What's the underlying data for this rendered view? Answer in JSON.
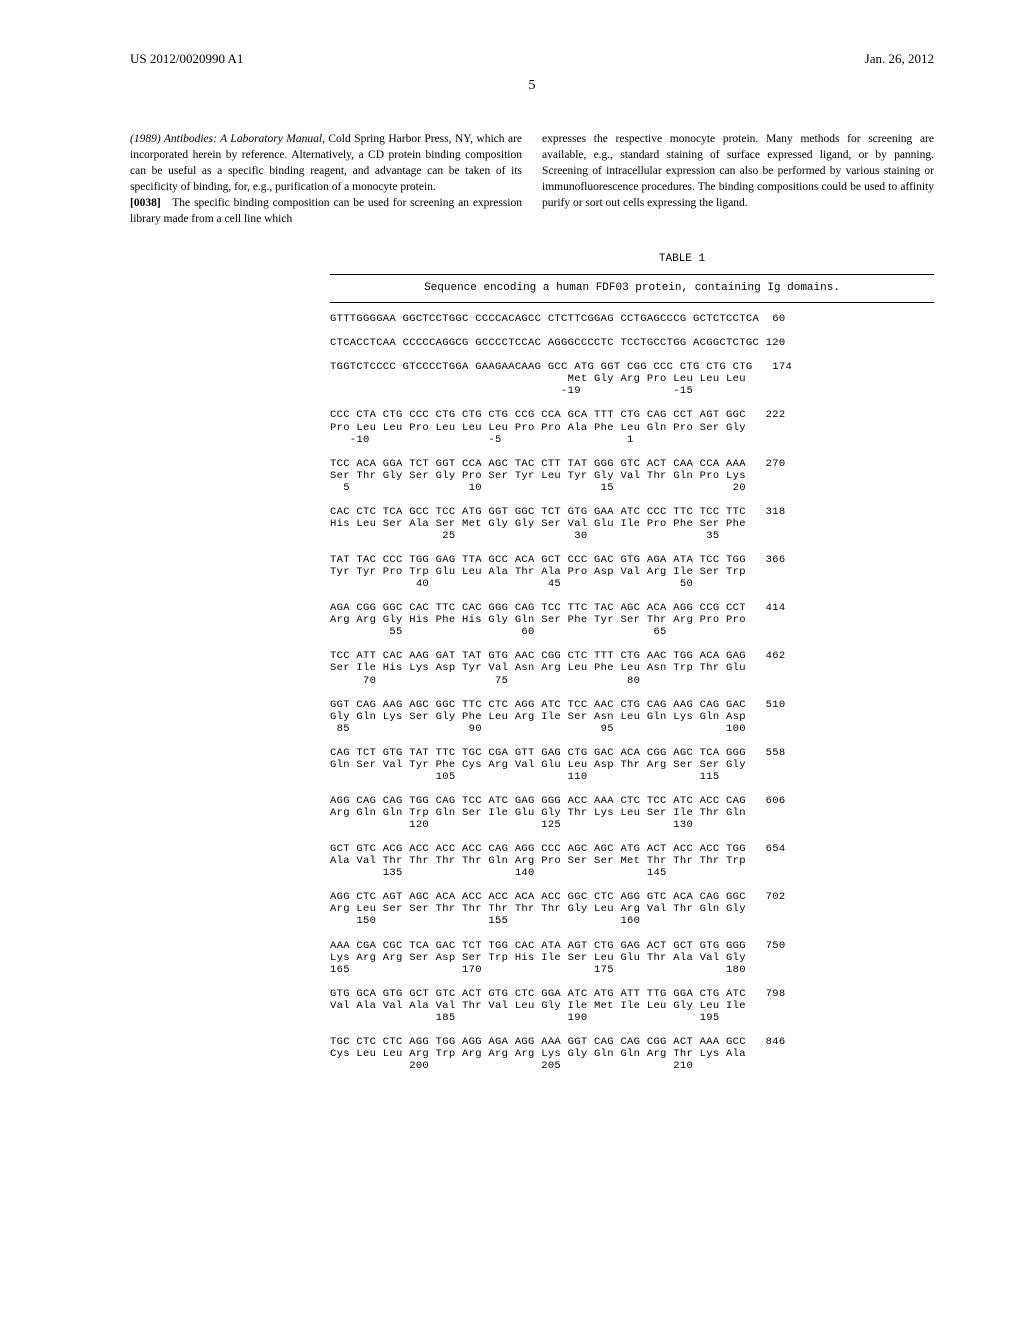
{
  "header": {
    "left": "US 2012/0020990 A1",
    "right": "Jan. 26, 2012"
  },
  "pageNumber": "5",
  "column1": {
    "text1_italic": "(1989) Antibodies: A Laboratory Manual",
    "text1_rest": ", Cold Spring Harbor Press, NY, which are incorporated herein by reference. Alternatively, a CD protein binding composition can be useful as a specific binding reagent, and advantage can be taken of its specificity of binding, for, e.g., purification of a monocyte protein.",
    "para_num": "[0038]",
    "text2": "The specific binding composition can be used for screening an expression library made from a cell line which"
  },
  "column2": {
    "text": "expresses the respective monocyte protein. Many methods for screening are available, e.g., standard staining of surface expressed ligand, or by panning. Screening of intracellular expression can also be performed by various staining or immunofluorescence procedures. The binding compositions could be used to affinity purify or sort out cells expressing the ligand."
  },
  "table": {
    "label": "TABLE 1",
    "header": "Sequence encoding a human FDF03 protein, containing Ig domains.",
    "rows": [
      {
        "nt": "GTTTGGGGAA GGCTCCTGGC CCCCACAGCC CTCTTCGGAG CCTGAGCCCG GCTCTCCTCA  60",
        "aa": "",
        "pos": ""
      },
      {
        "nt": "CTCACCTCAA CCCCCAGGCG GCCCCTCCAC AGGGCCCCTC TCCTGCCTGG ACGGCTCTGC 120",
        "aa": "",
        "pos": ""
      },
      {
        "nt": "TGGTCTCCCC GTCCCCTGGA GAAGAACAAG GCC ATG GGT CGG CCC CTG CTG CTG   174",
        "aa": "                                    Met Gly Arg Pro Leu Leu Leu",
        "pos": "                                   -19              -15"
      },
      {
        "nt": "CCC CTA CTG CCC CTG CTG CTG CCG CCA GCA TTT CTG CAG CCT AGT GGC   222",
        "aa": "Pro Leu Leu Pro Leu Leu Leu Pro Pro Ala Phe Leu Gln Pro Ser Gly",
        "pos": "   -10                  -5                   1"
      },
      {
        "nt": "TCC ACA GGA TCT GGT CCA AGC TAC CTT TAT GGG GTC ACT CAA CCA AAA   270",
        "aa": "Ser Thr Gly Ser Gly Pro Ser Tyr Leu Tyr Gly Val Thr Gln Pro Lys",
        "pos": "  5                  10                  15                  20"
      },
      {
        "nt": "CAC CTC TCA GCC TCC ATG GGT GGC TCT GTG GAA ATC CCC TTC TCC TTC   318",
        "aa": "His Leu Ser Ala Ser Met Gly Gly Ser Val Glu Ile Pro Phe Ser Phe",
        "pos": "                 25                  30                  35"
      },
      {
        "nt": "TAT TAC CCC TGG GAG TTA GCC ACA GCT CCC GAC GTG AGA ATA TCC TGG   366",
        "aa": "Tyr Tyr Pro Trp Glu Leu Ala Thr Ala Pro Asp Val Arg Ile Ser Trp",
        "pos": "             40                  45                  50"
      },
      {
        "nt": "AGA CGG GGC CAC TTC CAC GGG CAG TCC TTC TAC AGC ACA AGG CCG CCT   414",
        "aa": "Arg Arg Gly His Phe His Gly Gln Ser Phe Tyr Ser Thr Arg Pro Pro",
        "pos": "         55                  60                  65"
      },
      {
        "nt": "TCC ATT CAC AAG GAT TAT GTG AAC CGG CTC TTT CTG AAC TGG ACA GAG   462",
        "aa": "Ser Ile His Lys Asp Tyr Val Asn Arg Leu Phe Leu Asn Trp Thr Glu",
        "pos": "     70                  75                  80"
      },
      {
        "nt": "GGT CAG AAG AGC GGC TTC CTC AGG ATC TCC AAC CTG CAG AAG CAG GAC   510",
        "aa": "Gly Gln Lys Ser Gly Phe Leu Arg Ile Ser Asn Leu Gln Lys Gln Asp",
        "pos": " 85                  90                  95                 100"
      },
      {
        "nt": "CAG TCT GTG TAT TTC TGC CGA GTT GAG CTG GAC ACA CGG AGC TCA GGG   558",
        "aa": "Gln Ser Val Tyr Phe Cys Arg Val Glu Leu Asp Thr Arg Ser Ser Gly",
        "pos": "                105                 110                 115"
      },
      {
        "nt": "AGG CAG CAG TGG CAG TCC ATC GAG GGG ACC AAA CTC TCC ATC ACC CAG   606",
        "aa": "Arg Gln Gln Trp Gln Ser Ile Glu Gly Thr Lys Leu Ser Ile Thr Gln",
        "pos": "            120                 125                 130"
      },
      {
        "nt": "GCT GTC ACG ACC ACC ACC CAG AGG CCC AGC AGC ATG ACT ACC ACC TGG   654",
        "aa": "Ala Val Thr Thr Thr Thr Gln Arg Pro Ser Ser Met Thr Thr Thr Trp",
        "pos": "        135                 140                 145"
      },
      {
        "nt": "AGG CTC AGT AGC ACA ACC ACC ACA ACC GGC CTC AGG GTC ACA CAG GGC   702",
        "aa": "Arg Leu Ser Ser Thr Thr Thr Thr Thr Gly Leu Arg Val Thr Gln Gly",
        "pos": "    150                 155                 160"
      },
      {
        "nt": "AAA CGA CGC TCA GAC TCT TGG CAC ATA AGT CTG GAG ACT GCT GTG GGG   750",
        "aa": "Lys Arg Arg Ser Asp Ser Trp His Ile Ser Leu Glu Thr Ala Val Gly",
        "pos": "165                 170                 175                 180"
      },
      {
        "nt": "GTG GCA GTG GCT GTC ACT GTG CTC GGA ATC ATG ATT TTG GGA CTG ATC   798",
        "aa": "Val Ala Val Ala Val Thr Val Leu Gly Ile Met Ile Leu Gly Leu Ile",
        "pos": "                185                 190                 195"
      },
      {
        "nt": "TGC CTC CTC AGG TGG AGG AGA AGG AAA GGT CAG CAG CGG ACT AAA GCC   846",
        "aa": "Cys Leu Leu Arg Trp Arg Arg Arg Lys Gly Gln Gln Arg Thr Lys Ala",
        "pos": "            200                 205                 210"
      }
    ]
  }
}
